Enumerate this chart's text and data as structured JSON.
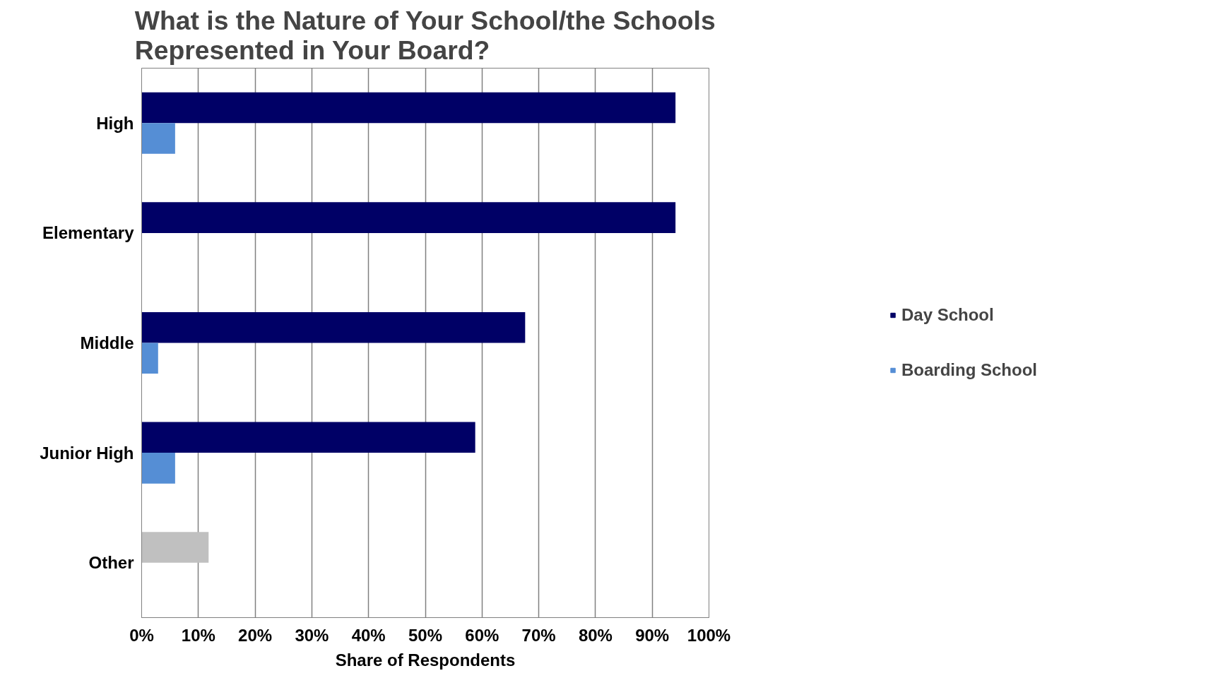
{
  "chart_data": {
    "type": "bar",
    "orientation": "horizontal",
    "title": "What is the Nature of Your School/the Schools Represented in Your Board?",
    "xlabel": "Share of Respondents",
    "categories": [
      "High",
      "Elementary",
      "Middle",
      "Junior High",
      "Other"
    ],
    "series": [
      {
        "name": "Day School",
        "color": "#000066",
        "colors": [
          "#000066",
          "#000066",
          "#000066",
          "#000066",
          "#c0c0c0"
        ],
        "values": [
          94.1,
          94.1,
          67.6,
          58.8,
          11.8
        ]
      },
      {
        "name": "Boarding School",
        "color": "#558ed5",
        "values": [
          5.9,
          null,
          2.9,
          5.9,
          null
        ]
      }
    ],
    "xlim": [
      0,
      100
    ],
    "xticks": [
      {
        "value": 0,
        "label": "0%"
      },
      {
        "value": 10,
        "label": "10%"
      },
      {
        "value": 20,
        "label": "20%"
      },
      {
        "value": 30,
        "label": "30%"
      },
      {
        "value": 40,
        "label": "40%"
      },
      {
        "value": 50,
        "label": "50%"
      },
      {
        "value": 60,
        "label": "60%"
      },
      {
        "value": 70,
        "label": "70%"
      },
      {
        "value": 80,
        "label": "80%"
      },
      {
        "value": 90,
        "label": "90%"
      },
      {
        "value": 100,
        "label": "100%"
      }
    ],
    "grid": "x",
    "legend": "right"
  }
}
